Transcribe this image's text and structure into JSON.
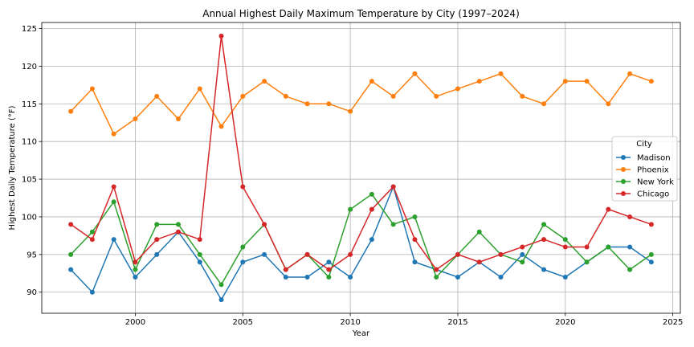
{
  "chart_data": {
    "type": "line",
    "title": "Annual Highest Daily Maximum Temperature by City (1997–2024)",
    "xlabel": "Year",
    "ylabel": "Highest Daily Temperature (°F)",
    "x": [
      1997,
      1998,
      1999,
      2000,
      2001,
      2002,
      2003,
      2004,
      2005,
      2006,
      2007,
      2008,
      2009,
      2010,
      2011,
      2012,
      2013,
      2014,
      2015,
      2016,
      2017,
      2018,
      2019,
      2020,
      2021,
      2022,
      2023,
      2024
    ],
    "xlim": [
      1995.65,
      2025.35
    ],
    "ylim": [
      87.2,
      125.8
    ],
    "x_ticks": [
      2000,
      2005,
      2010,
      2015,
      2020,
      2025
    ],
    "y_ticks": [
      90,
      95,
      100,
      105,
      110,
      115,
      120,
      125
    ],
    "grid": true,
    "legend": {
      "title": "City",
      "position": "center-right"
    },
    "series": [
      {
        "name": "Madison",
        "color": "#1f77b4",
        "values": [
          93,
          90,
          97,
          92,
          95,
          98,
          94,
          89,
          94,
          95,
          92,
          92,
          94,
          92,
          97,
          104,
          94,
          93,
          92,
          94,
          92,
          95,
          93,
          92,
          94,
          96,
          96,
          94
        ]
      },
      {
        "name": "Phoenix",
        "color": "#ff7f0e",
        "values": [
          114,
          117,
          111,
          113,
          116,
          113,
          117,
          112,
          116,
          118,
          116,
          115,
          115,
          114,
          118,
          116,
          119,
          116,
          117,
          118,
          119,
          116,
          115,
          118,
          118,
          115,
          119,
          118
        ]
      },
      {
        "name": "New York",
        "color": "#2ca02c",
        "values": [
          95,
          98,
          102,
          93,
          99,
          99,
          95,
          91,
          96,
          99,
          93,
          95,
          92,
          101,
          103,
          99,
          100,
          92,
          95,
          98,
          95,
          94,
          99,
          97,
          94,
          96,
          93,
          95
        ]
      },
      {
        "name": "Chicago",
        "color": "#d62728",
        "values": [
          99,
          97,
          104,
          94,
          97,
          98,
          97,
          124,
          104,
          99,
          93,
          95,
          93,
          95,
          101,
          104,
          97,
          93,
          95,
          94,
          95,
          96,
          97,
          96,
          96,
          101,
          100,
          99
        ]
      }
    ]
  }
}
